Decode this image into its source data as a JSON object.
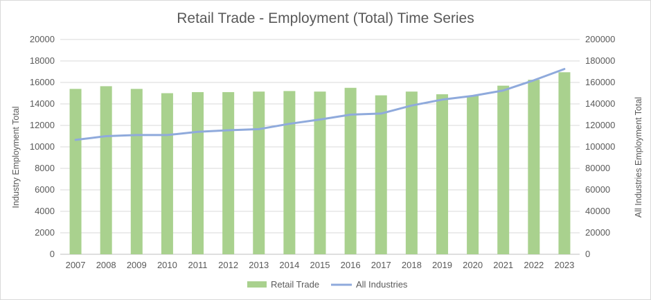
{
  "chart_data": {
    "type": "bar",
    "title": "Retail Trade - Employment (Total) Time Series",
    "categories": [
      "2007",
      "2008",
      "2009",
      "2010",
      "2011",
      "2012",
      "2013",
      "2014",
      "2015",
      "2016",
      "2017",
      "2018",
      "2019",
      "2020",
      "2021",
      "2022",
      "2023"
    ],
    "series": [
      {
        "name": "Retail Trade",
        "type": "bar",
        "axis": "left",
        "color": "#a9d18e",
        "values": [
          15400,
          15650,
          15400,
          15000,
          15100,
          15100,
          15150,
          15200,
          15150,
          15500,
          14800,
          15150,
          14900,
          14750,
          15700,
          16250,
          16950
        ]
      },
      {
        "name": "All Industries",
        "type": "line",
        "axis": "right",
        "color": "#8faadc",
        "values": [
          106500,
          110000,
          111000,
          111000,
          114000,
          115500,
          116500,
          121500,
          125500,
          130000,
          131000,
          138500,
          144000,
          147500,
          152500,
          162000,
          172500
        ]
      }
    ],
    "ylabel": "Industry Employment Total",
    "y2label": "All Industries Employment Total",
    "ylim": [
      0,
      20000
    ],
    "y2lim": [
      0,
      200000
    ],
    "yticks": [
      "0",
      "2000",
      "4000",
      "6000",
      "8000",
      "10000",
      "12000",
      "14000",
      "16000",
      "18000",
      "20000"
    ],
    "y2ticks": [
      "0",
      "20000",
      "40000",
      "60000",
      "80000",
      "100000",
      "120000",
      "140000",
      "160000",
      "180000",
      "200000"
    ],
    "grid": true,
    "legend_position": "bottom"
  }
}
